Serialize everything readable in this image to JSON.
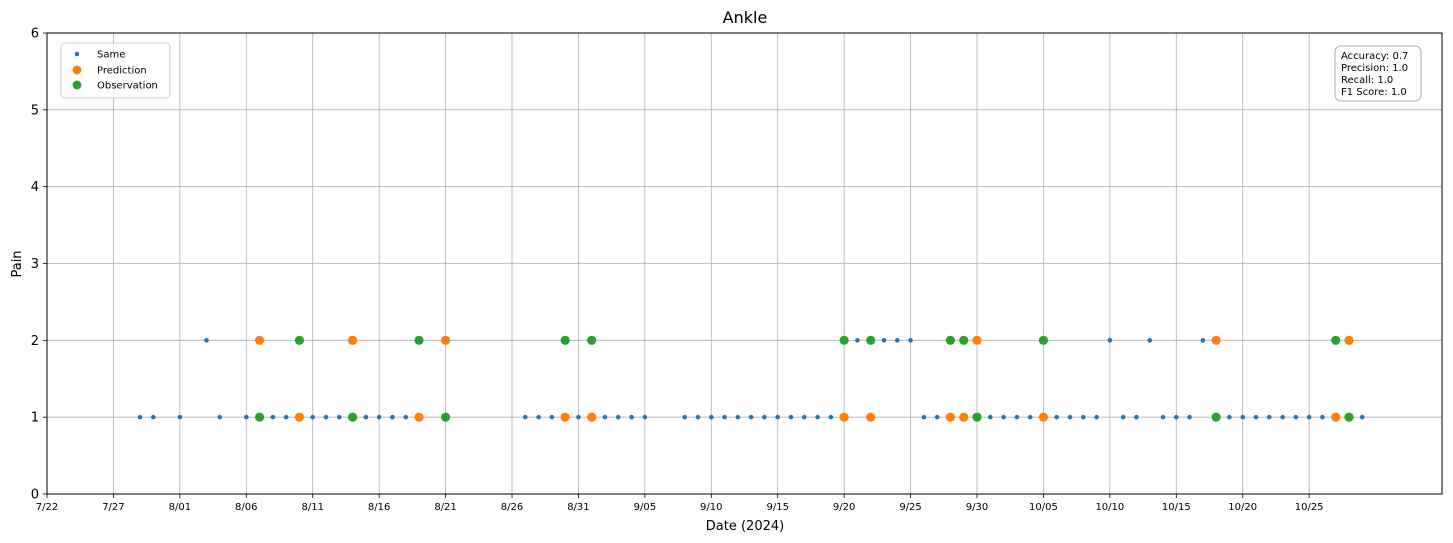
{
  "chart_data": {
    "type": "scatter",
    "title": "Ankle",
    "xlabel": "Date (2024)",
    "ylabel": "Pain",
    "ylim": [
      0,
      6
    ],
    "xlim": [
      0,
      105
    ],
    "x_unit": "days since 7/22",
    "x_ticks": [
      {
        "day": 0,
        "label": "7/22"
      },
      {
        "day": 5,
        "label": "7/27"
      },
      {
        "day": 10,
        "label": "8/01"
      },
      {
        "day": 15,
        "label": "8/06"
      },
      {
        "day": 20,
        "label": "8/11"
      },
      {
        "day": 25,
        "label": "8/16"
      },
      {
        "day": 30,
        "label": "8/21"
      },
      {
        "day": 35,
        "label": "8/26"
      },
      {
        "day": 40,
        "label": "8/31"
      },
      {
        "day": 45,
        "label": "9/05"
      },
      {
        "day": 50,
        "label": "9/10"
      },
      {
        "day": 55,
        "label": "9/15"
      },
      {
        "day": 60,
        "label": "9/20"
      },
      {
        "day": 65,
        "label": "9/25"
      },
      {
        "day": 70,
        "label": "9/30"
      },
      {
        "day": 75,
        "label": "10/05"
      },
      {
        "day": 80,
        "label": "10/10"
      },
      {
        "day": 85,
        "label": "10/15"
      },
      {
        "day": 90,
        "label": "10/20"
      },
      {
        "day": 95,
        "label": "10/25"
      }
    ],
    "y_ticks": [
      "0",
      "1",
      "2",
      "3",
      "4",
      "5",
      "6"
    ],
    "grid": true,
    "legend_position": "top-left",
    "series": [
      {
        "name": "Same",
        "color": "#1f77b4",
        "marker": "small",
        "points": [
          [
            7,
            1
          ],
          [
            8,
            1
          ],
          [
            10,
            1
          ],
          [
            12,
            2
          ],
          [
            13,
            1
          ],
          [
            15,
            1
          ],
          [
            17,
            1
          ],
          [
            18,
            1
          ],
          [
            20,
            1
          ],
          [
            21,
            1
          ],
          [
            22,
            1
          ],
          [
            24,
            1
          ],
          [
            25,
            1
          ],
          [
            26,
            1
          ],
          [
            27,
            1
          ],
          [
            36,
            1
          ],
          [
            37,
            1
          ],
          [
            38,
            1
          ],
          [
            40,
            1
          ],
          [
            42,
            1
          ],
          [
            43,
            1
          ],
          [
            44,
            1
          ],
          [
            45,
            1
          ],
          [
            48,
            1
          ],
          [
            49,
            1
          ],
          [
            50,
            1
          ],
          [
            51,
            1
          ],
          [
            52,
            1
          ],
          [
            53,
            1
          ],
          [
            54,
            1
          ],
          [
            55,
            1
          ],
          [
            56,
            1
          ],
          [
            57,
            1
          ],
          [
            58,
            1
          ],
          [
            59,
            1
          ],
          [
            61,
            2
          ],
          [
            63,
            2
          ],
          [
            64,
            2
          ],
          [
            65,
            2
          ],
          [
            66,
            1
          ],
          [
            67,
            1
          ],
          [
            71,
            1
          ],
          [
            72,
            1
          ],
          [
            73,
            1
          ],
          [
            74,
            1
          ],
          [
            76,
            1
          ],
          [
            77,
            1
          ],
          [
            78,
            1
          ],
          [
            79,
            1
          ],
          [
            80,
            2
          ],
          [
            81,
            1
          ],
          [
            82,
            1
          ],
          [
            83,
            2
          ],
          [
            84,
            1
          ],
          [
            85,
            1
          ],
          [
            86,
            1
          ],
          [
            87,
            2
          ],
          [
            89,
            1
          ],
          [
            90,
            1
          ],
          [
            91,
            1
          ],
          [
            92,
            1
          ],
          [
            93,
            1
          ],
          [
            94,
            1
          ],
          [
            95,
            1
          ],
          [
            96,
            1
          ],
          [
            99,
            1
          ]
        ]
      },
      {
        "name": "Prediction",
        "color": "#ff7f0e",
        "marker": "large",
        "points": [
          [
            16,
            2
          ],
          [
            19,
            1
          ],
          [
            23,
            2
          ],
          [
            28,
            1
          ],
          [
            30,
            2
          ],
          [
            39,
            1
          ],
          [
            41,
            1
          ],
          [
            60,
            1
          ],
          [
            62,
            1
          ],
          [
            68,
            1
          ],
          [
            69,
            1
          ],
          [
            70,
            2
          ],
          [
            75,
            1
          ],
          [
            88,
            2
          ],
          [
            97,
            1
          ],
          [
            98,
            2
          ]
        ]
      },
      {
        "name": "Observation",
        "color": "#2ca02c",
        "marker": "large",
        "points": [
          [
            16,
            1
          ],
          [
            19,
            2
          ],
          [
            23,
            1
          ],
          [
            28,
            2
          ],
          [
            30,
            1
          ],
          [
            39,
            2
          ],
          [
            41,
            2
          ],
          [
            60,
            2
          ],
          [
            62,
            2
          ],
          [
            68,
            2
          ],
          [
            69,
            2
          ],
          [
            70,
            1
          ],
          [
            75,
            2
          ],
          [
            88,
            1
          ],
          [
            97,
            2
          ],
          [
            98,
            1
          ]
        ]
      }
    ],
    "annotations": {
      "stats": [
        "Accuracy: 0.7",
        "Precision: 1.0",
        "Recall: 1.0",
        "F1 Score: 1.0"
      ]
    }
  }
}
